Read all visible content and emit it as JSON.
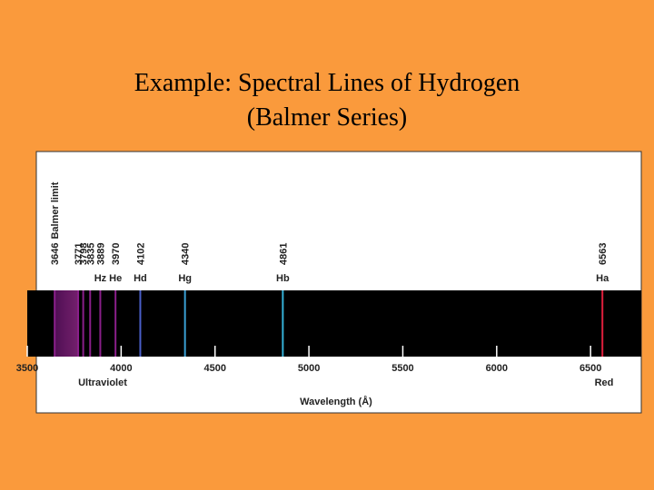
{
  "chart_data": {
    "type": "spectrum",
    "title": "Example: Spectral Lines of Hydrogen",
    "subtitle": "(Balmer Series)",
    "xlabel": "Wavelength (Å)",
    "uv_label": "Ultraviolet",
    "red_label": "Red",
    "x": [
      3646,
      3771,
      3798,
      3835,
      3889,
      3970,
      4102,
      4340,
      4861,
      6563
    ],
    "line_names": [
      null,
      null,
      null,
      null,
      "Hz",
      "He",
      "Hd",
      "Hg",
      "Hb",
      "Ha"
    ],
    "line_annotation": "Balmer limit",
    "colors": [
      "#8a1f8a",
      "#8a1f8a",
      "#8a1f8a",
      "#8a1f8a",
      "#8a1f8a",
      "#8a1f8a",
      "#4a5fc8",
      "#3a9fd4",
      "#34b0d6",
      "#e01e3c"
    ],
    "xlim": [
      3500,
      6770
    ],
    "xticks": [
      3500,
      4000,
      4500,
      5000,
      5500,
      6000,
      6500
    ]
  }
}
